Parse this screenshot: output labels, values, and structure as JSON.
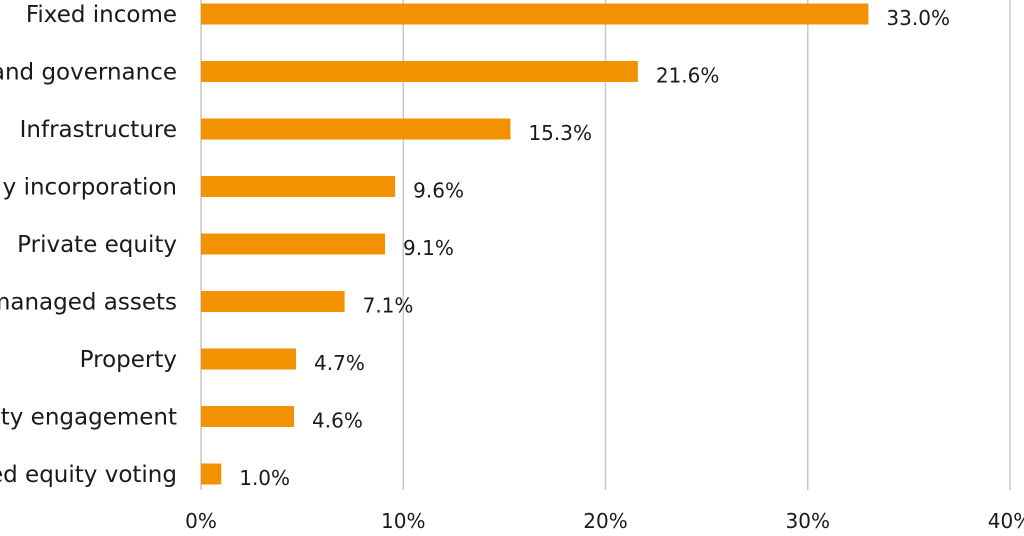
{
  "chart_data": {
    "type": "bar",
    "orientation": "horizontal",
    "title": "",
    "xlabel": "",
    "ylabel": "",
    "categories": [
      "Fixed income",
      "and governance",
      "Infrastructure",
      "y incorporation",
      "Private equity",
      "managed assets",
      "Property",
      "ty engagement",
      "ed equity voting"
    ],
    "values": [
      33.0,
      21.6,
      15.3,
      9.6,
      9.1,
      7.1,
      4.7,
      4.6,
      1.0
    ],
    "value_labels": [
      "33.0%",
      "21.6%",
      "15.3%",
      "9.6%",
      "9.1%",
      "7.1%",
      "4.7%",
      "4.6%",
      "1.0%"
    ],
    "xlim": [
      0,
      40
    ],
    "x_ticks": [
      0,
      10,
      20,
      30,
      40
    ],
    "x_tick_labels": [
      "0%",
      "10%",
      "20%",
      "30%",
      "40%"
    ],
    "grid": "vertical",
    "legend": "none",
    "bar_color": "#f39200",
    "grid_color": "#c8c8c8",
    "text_color": "#1a1a1a"
  }
}
